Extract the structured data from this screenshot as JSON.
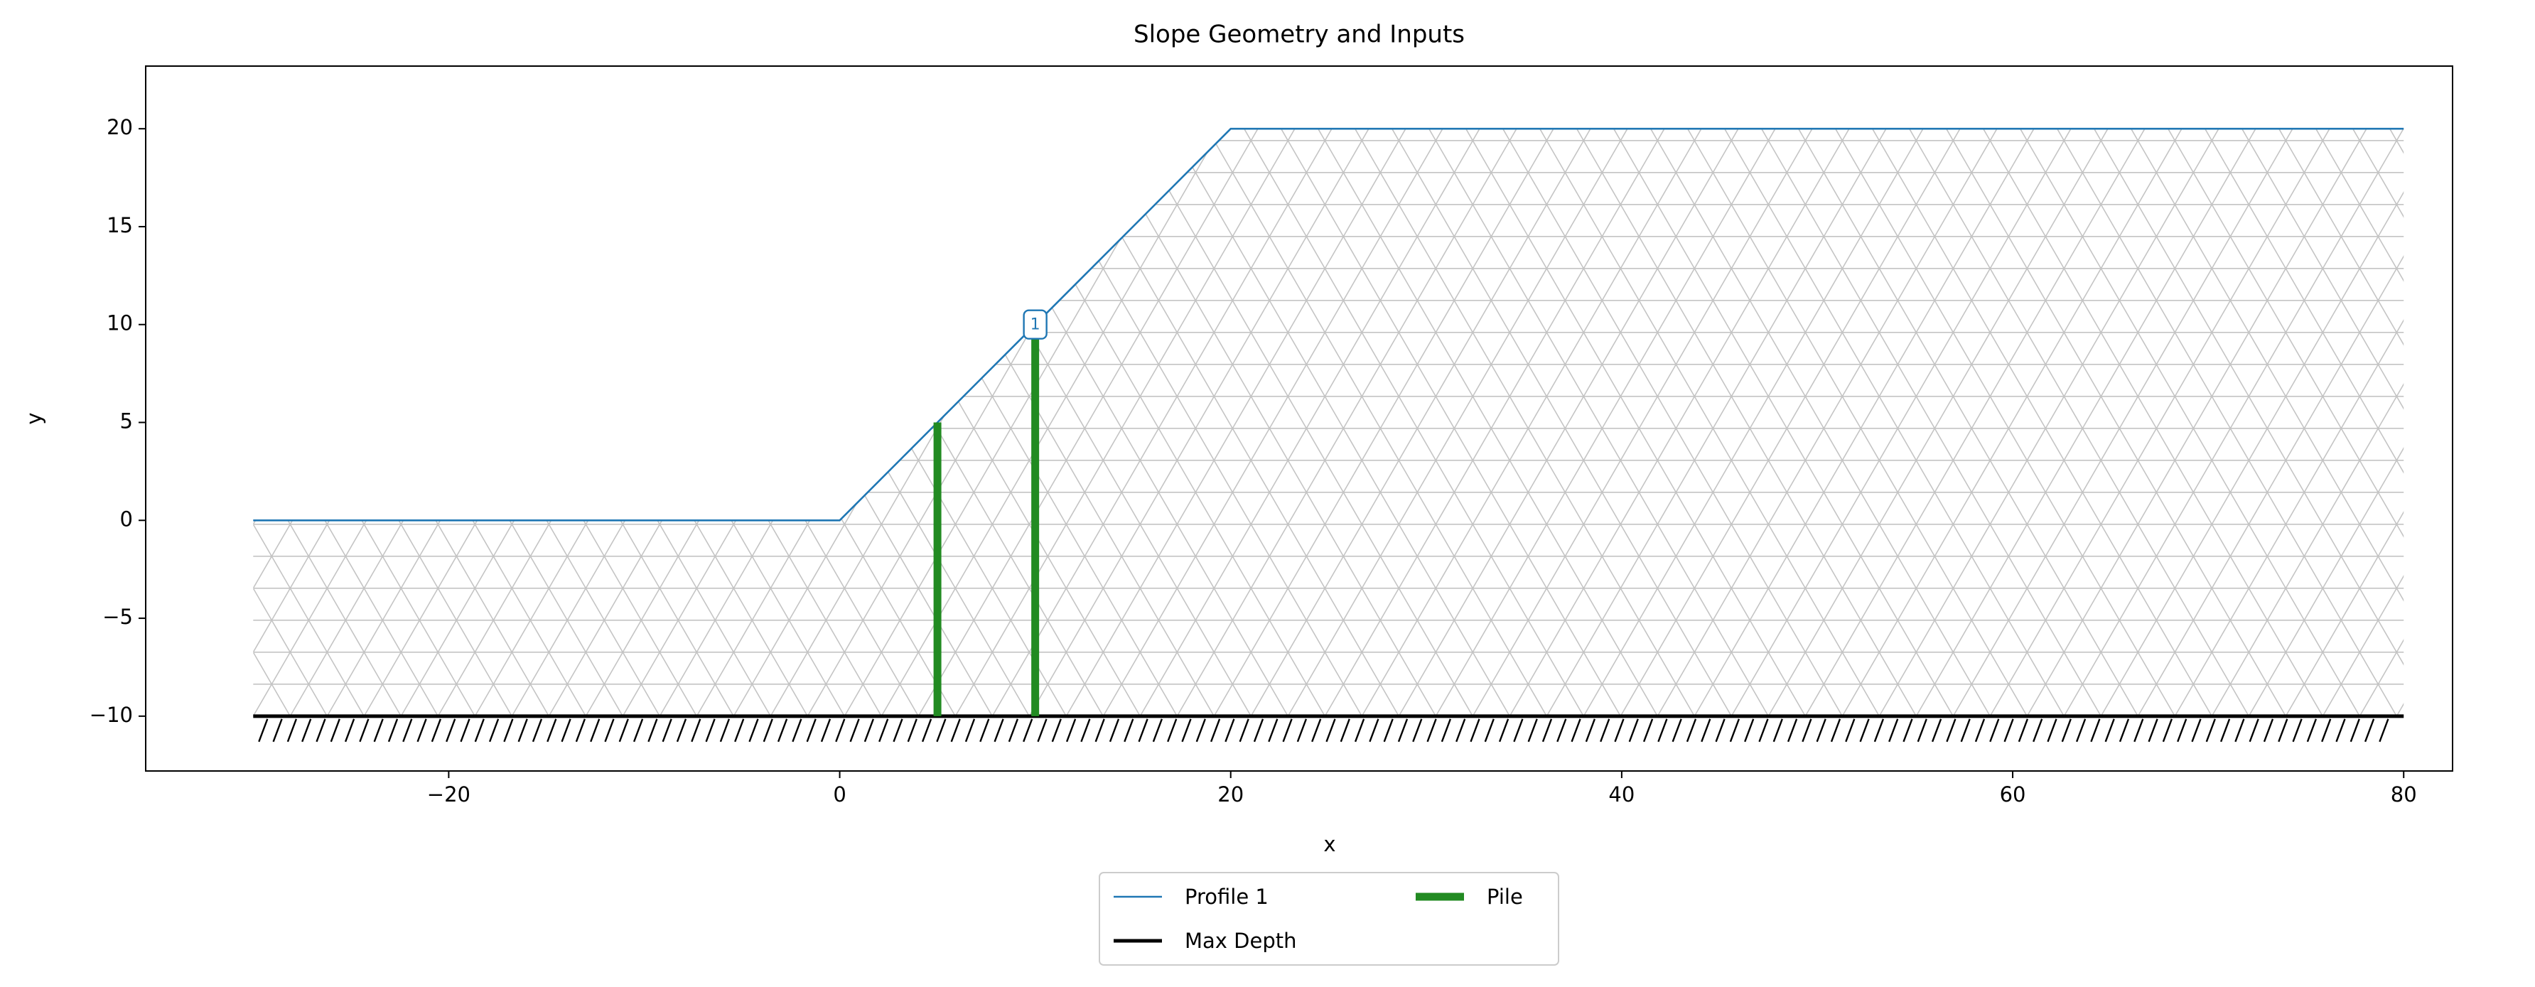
{
  "chart_data": {
    "type": "line",
    "title": "Slope Geometry and Inputs",
    "x_label": "x",
    "y_label": "y",
    "series": [
      {
        "name": "Profile 1",
        "color": "#1f77b4",
        "x": [
          -30,
          0,
          20,
          80
        ],
        "values": [
          0,
          0,
          20,
          20
        ]
      },
      {
        "name": "Max Depth",
        "color": "#000000",
        "x": [
          -30,
          80
        ],
        "values": [
          -10,
          -10
        ]
      },
      {
        "name": "Pile",
        "color": "#228b22",
        "x": [
          5,
          5,
          null,
          10,
          10
        ],
        "values": [
          -10,
          5,
          null,
          -10,
          10
        ]
      }
    ],
    "annotations": [
      {
        "text": "1",
        "x": 10,
        "y": 10,
        "color": "#1f77b4"
      }
    ],
    "xlim": [
      -35.5,
      82.5
    ],
    "ylim": [
      -12.8,
      23.2
    ],
    "xticks": [
      {
        "value": -20,
        "label": "−20"
      },
      0,
      20,
      40,
      60,
      80
    ],
    "yticks": [
      {
        "value": -10,
        "label": "−10"
      },
      {
        "value": -5,
        "label": "−5"
      },
      0,
      5,
      10,
      15,
      20
    ],
    "grid": false,
    "legend": "below"
  }
}
